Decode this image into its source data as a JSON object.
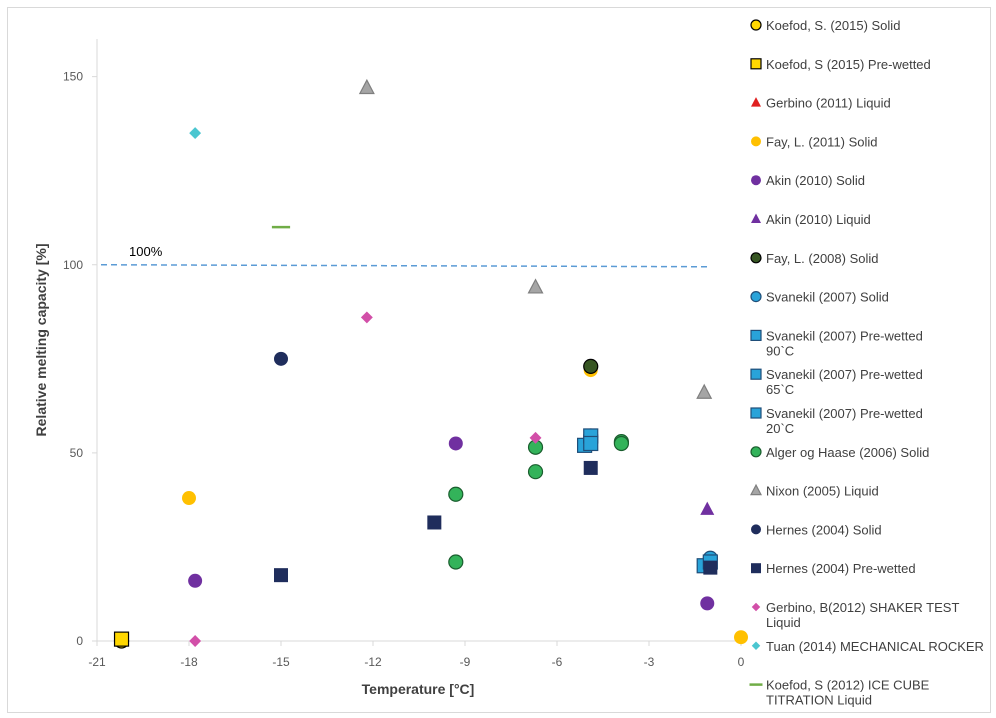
{
  "chart_data": {
    "type": "scatter",
    "xlabel": "Temperature [°C]",
    "ylabel": "Relative melting capacity [%]",
    "xlim": [
      -21,
      0
    ],
    "ylim": [
      0,
      160
    ],
    "x_ticks": [
      -21,
      -18,
      -15,
      -12,
      -9,
      -6,
      -3,
      0
    ],
    "y_ticks": [
      0,
      50,
      100,
      150
    ],
    "grid": false,
    "legend_position": "right",
    "reference_line": {
      "y": 100,
      "label": "100%",
      "color": "#5b9bd5"
    },
    "series": [
      {
        "name": "Koefod, S. (2015) Solid",
        "marker": "circle",
        "color": "#ffd700",
        "stroke": "#000000",
        "points": [
          [
            -20.2,
            0
          ]
        ]
      },
      {
        "name": "Koefod, S (2015) Pre-wetted",
        "marker": "square",
        "color": "#ffd700",
        "stroke": "#000000",
        "points": [
          [
            -20.2,
            0.5
          ]
        ]
      },
      {
        "name": "Gerbino (2011) Liquid",
        "marker": "triangle",
        "color": "#e02020",
        "stroke": "none",
        "points": []
      },
      {
        "name": "Fay, L. (2011) Solid",
        "marker": "circle",
        "color": "#ffc000",
        "stroke": "none",
        "points": [
          [
            -18.0,
            38
          ],
          [
            -4.9,
            72
          ],
          [
            0.0,
            1
          ]
        ]
      },
      {
        "name": "Akin (2010) Solid",
        "marker": "circle",
        "color": "#7030a0",
        "stroke": "none",
        "points": [
          [
            -17.8,
            16
          ],
          [
            -9.3,
            52.5
          ],
          [
            -1.1,
            10
          ]
        ]
      },
      {
        "name": "Akin (2010) Liquid",
        "marker": "triangle",
        "color": "#7030a0",
        "stroke": "none",
        "points": [
          [
            -1.1,
            35
          ]
        ]
      },
      {
        "name": "Fay, L. (2008) Solid",
        "marker": "circle",
        "color": "#375623",
        "stroke": "#000000",
        "points": [
          [
            -4.9,
            73
          ]
        ]
      },
      {
        "name": "Svanekil (2007) Solid",
        "marker": "circle",
        "color": "#29a3d9",
        "stroke": "#1f4e79",
        "points": [
          [
            -4.9,
            54.5
          ],
          [
            -1.0,
            22
          ]
        ]
      },
      {
        "name": "Svanekil (2007) Pre-wetted 90`C",
        "marker": "square",
        "color": "#29a3d9",
        "stroke": "#1f4e79",
        "points": [
          [
            -5.1,
            52
          ],
          [
            -1.2,
            20
          ]
        ]
      },
      {
        "name": "Svanekil (2007) Pre-wetted 65`C",
        "marker": "square",
        "color": "#29a3d9",
        "stroke": "#1f4e79",
        "points": [
          [
            -4.9,
            54.5
          ],
          [
            -1.0,
            21
          ]
        ]
      },
      {
        "name": "Svanekil (2007) Pre-wetted 20`C",
        "marker": "square",
        "color": "#29a3d9",
        "stroke": "#1f4e79",
        "points": [
          [
            -4.9,
            52.5
          ]
        ]
      },
      {
        "name": "Alger og Haase (2006) Solid",
        "marker": "circle",
        "color": "#33b35a",
        "stroke": "#1a5e2e",
        "points": [
          [
            -9.3,
            39
          ],
          [
            -9.3,
            21
          ],
          [
            -6.7,
            45
          ],
          [
            -6.7,
            51.5
          ],
          [
            -3.9,
            53
          ],
          [
            -3.9,
            52.5
          ]
        ]
      },
      {
        "name": "Nixon (2005) Liquid",
        "marker": "triangle",
        "color": "#a5a5a5",
        "stroke": "#7f7f7f",
        "points": [
          [
            -12.2,
            147
          ],
          [
            -6.7,
            94
          ],
          [
            -1.2,
            66
          ]
        ]
      },
      {
        "name": "Hernes (2004) Solid",
        "marker": "circle",
        "color": "#1f2d5c",
        "stroke": "none",
        "points": [
          [
            -15.0,
            75
          ]
        ]
      },
      {
        "name": "Hernes (2004) Pre-wetted",
        "marker": "square",
        "color": "#1f2d5c",
        "stroke": "none",
        "points": [
          [
            -15.0,
            17.5
          ],
          [
            -10.0,
            31.5
          ],
          [
            -4.9,
            46
          ],
          [
            -1.0,
            19.5
          ]
        ]
      },
      {
        "name": "Gerbino, B(2012) SHAKER TEST Liquid",
        "marker": "diamond",
        "color": "#d24fa8",
        "stroke": "none",
        "points": [
          [
            -17.8,
            0
          ],
          [
            -12.2,
            86
          ],
          [
            -6.7,
            54
          ]
        ]
      },
      {
        "name": "Tuan (2014) MECHANICAL ROCKER",
        "marker": "diamond",
        "color": "#4bc6d0",
        "stroke": "none",
        "points": [
          [
            -17.8,
            135
          ]
        ]
      },
      {
        "name": "Koefod, S (2012) ICE CUBE TITRATION Liquid",
        "marker": "dash",
        "color": "#70ad47",
        "stroke": "none",
        "points": [
          [
            -15.0,
            110
          ]
        ]
      }
    ]
  }
}
